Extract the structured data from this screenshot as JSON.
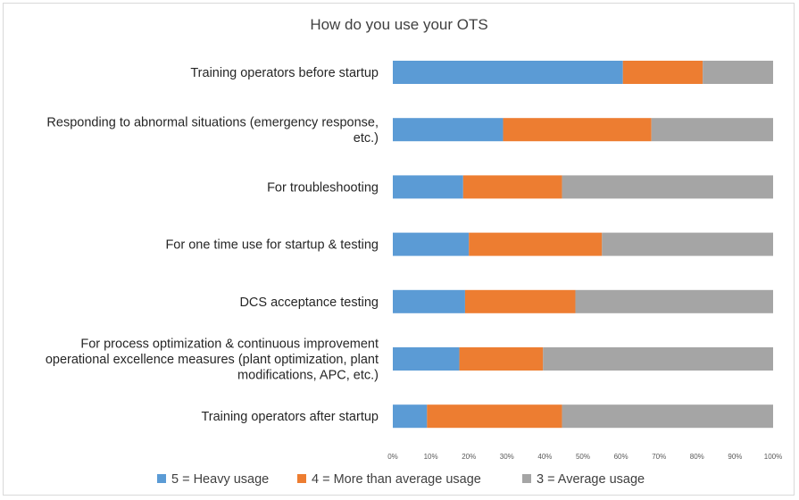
{
  "chart_data": {
    "type": "bar",
    "orientation": "horizontal",
    "stacked": "percent",
    "title": "How do you use your OTS",
    "xlabel": "",
    "ylabel": "",
    "xlim": [
      0,
      100
    ],
    "x_ticks": [
      "0%",
      "10%",
      "20%",
      "30%",
      "40%",
      "50%",
      "60%",
      "70%",
      "80%",
      "90%",
      "100%"
    ],
    "categories": [
      [
        "Training operators before startup"
      ],
      [
        "Responding to abnormal situations (emergency response,",
        "etc.)"
      ],
      [
        "For troubleshooting"
      ],
      [
        "For one time use for startup & testing"
      ],
      [
        "DCS acceptance testing"
      ],
      [
        "For process optimization & continuous improvement",
        "operational excellence measures (plant optimization, plant",
        "modifications, APC, etc.)"
      ],
      [
        "Training operators after startup"
      ]
    ],
    "series": [
      {
        "name": "5 = Heavy usage",
        "color": "#5b9bd5",
        "values": [
          60.5,
          29,
          18.5,
          20,
          19,
          17.5,
          9
        ]
      },
      {
        "name": "4 = More than average usage",
        "color": "#ed7d31",
        "values": [
          21,
          39,
          26,
          35,
          29,
          22,
          35.5
        ]
      },
      {
        "name": "3 = Average usage",
        "color": "#a5a5a5",
        "values": [
          18.5,
          32,
          55.5,
          45,
          52,
          60.5,
          55.5
        ]
      }
    ],
    "legend_position": "bottom"
  }
}
